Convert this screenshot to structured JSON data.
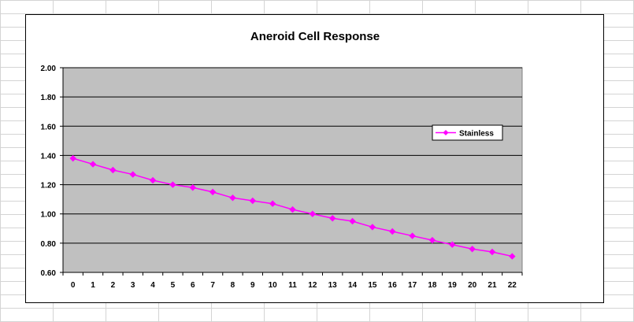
{
  "chart_data": {
    "type": "line",
    "title": "Aneroid Cell Response",
    "xlabel": "",
    "ylabel": "",
    "x": [
      0,
      1,
      2,
      3,
      4,
      5,
      6,
      7,
      8,
      9,
      10,
      11,
      12,
      13,
      14,
      15,
      16,
      17,
      18,
      19,
      20,
      21,
      22
    ],
    "y_ticks": [
      "0.60",
      "0.80",
      "1.00",
      "1.20",
      "1.40",
      "1.60",
      "1.80",
      "2.00"
    ],
    "ylim": [
      0.6,
      2.0
    ],
    "grid": true,
    "legend_position": "right",
    "series": [
      {
        "name": "Stainless",
        "color": "#ff00ff",
        "marker": "diamond",
        "values": [
          1.38,
          1.34,
          1.3,
          1.27,
          1.23,
          1.2,
          1.18,
          1.15,
          1.11,
          1.09,
          1.07,
          1.03,
          1.0,
          0.97,
          0.95,
          0.91,
          0.88,
          0.85,
          0.82,
          0.79,
          0.76,
          0.74,
          0.71
        ]
      }
    ],
    "plot_background": "#c0c0c0"
  }
}
